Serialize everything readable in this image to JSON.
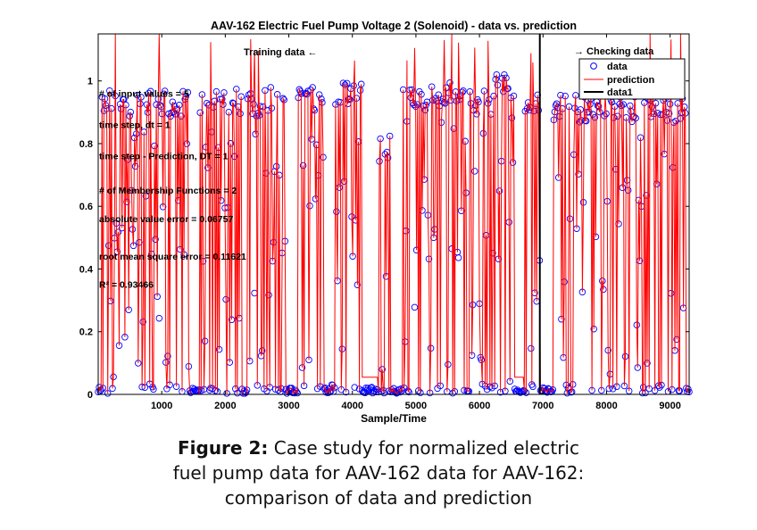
{
  "chart_data": {
    "type": "line",
    "title": "AAV-162 Electric Fuel Pump Voltage 2 (Solenoid) - data vs. prediction",
    "xlabel": "Sample/Time",
    "ylabel": "",
    "xlim": [
      0,
      9300
    ],
    "ylim": [
      0,
      1.15
    ],
    "xticks": [
      1000,
      2000,
      3000,
      4000,
      5000,
      6000,
      7000,
      8000,
      9000
    ],
    "yticks": [
      0,
      0.2,
      0.4,
      0.6,
      0.8,
      1
    ],
    "grid": false,
    "legend": {
      "placement": "top-right",
      "entries": [
        "data",
        "prediction",
        "data1"
      ]
    },
    "series": [
      {
        "name": "data",
        "style": "circle-markers",
        "color": "#0000ff"
      },
      {
        "name": "prediction",
        "style": "line",
        "color": "#ff0000"
      },
      {
        "name": "data1",
        "style": "line",
        "color": "#000000",
        "x": [
          6950,
          6950
        ],
        "y": [
          0,
          1.15
        ]
      }
    ],
    "annotations": {
      "training": "Training data ←",
      "checking": "→ Checking data",
      "lines": [
        {
          "text": "# of input values = 5",
          "y": 0.95
        },
        {
          "text": "time step, dt = 1",
          "y": 0.85
        },
        {
          "text": "time step - Prediction, DT = 1",
          "y": 0.75
        },
        {
          "text": "# of Membership Functions = 2",
          "y": 0.64
        },
        {
          "text": "absolute value error = 0.06757",
          "y": 0.55
        },
        {
          "text": "root mean square error = 0.11621",
          "y": 0.43
        },
        {
          "text": "R² = 0.93466",
          "y": 0.34
        }
      ]
    },
    "active_ranges": [
      [
        50,
        1450,
        0.93
      ],
      [
        1600,
        2250,
        0.93
      ],
      [
        2350,
        2950,
        0.94
      ],
      [
        3150,
        3550,
        0.95
      ],
      [
        3650,
        3950,
        0.96
      ],
      [
        3950,
        4150,
        0.97
      ],
      [
        4400,
        4600,
        0.78
      ],
      [
        4800,
        5800,
        0.95
      ],
      [
        5850,
        6200,
        0.93
      ],
      [
        6200,
        6550,
        0.99
      ],
      [
        6700,
        6950,
        0.92
      ],
      [
        7150,
        9250,
        0.91
      ]
    ],
    "plateaus": [
      [
        100,
        1400,
        0.055
      ],
      [
        1450,
        2600,
        0.0
      ],
      [
        4100,
        4400,
        0.055
      ],
      [
        5450,
        5700,
        0.055
      ],
      [
        6000,
        6900,
        0.055
      ]
    ]
  },
  "caption": {
    "label": "Figure 2:",
    "line1": " Case study for normalized electric",
    "line2": "fuel pump data for AAV-162 data for AAV-162:",
    "line3": "comparison of data and prediction"
  }
}
